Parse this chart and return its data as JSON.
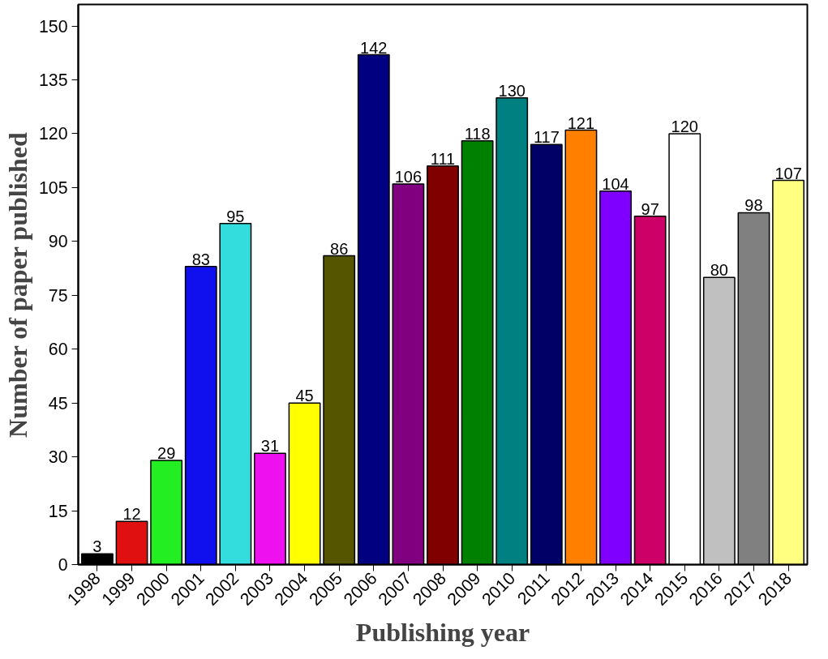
{
  "chart_data": {
    "type": "bar",
    "xlabel": "Publishing year",
    "ylabel": "Number of paper published",
    "categories": [
      "1998",
      "1999",
      "2000",
      "2001",
      "2002",
      "2003",
      "2004",
      "2005",
      "2006",
      "2007",
      "2008",
      "2009",
      "2010",
      "2011",
      "2012",
      "2013",
      "2014",
      "2015",
      "2016",
      "2017",
      "2018"
    ],
    "values": [
      3,
      12,
      29,
      83,
      95,
      31,
      45,
      86,
      142,
      106,
      111,
      118,
      130,
      117,
      121,
      104,
      97,
      120,
      80,
      98,
      107
    ],
    "colors": [
      "#000000",
      "#e01010",
      "#22ee22",
      "#1010ee",
      "#33dddd",
      "#ee10ee",
      "#ffff00",
      "#555500",
      "#000080",
      "#800080",
      "#800000",
      "#008000",
      "#008080",
      "#000066",
      "#ff8000",
      "#8000ff",
      "#cc0066",
      "#ffffff",
      "#c0c0c0",
      "#808080",
      "#ffff80"
    ],
    "ylim": [
      0,
      156
    ],
    "yticks": [
      0,
      15,
      30,
      45,
      60,
      75,
      90,
      105,
      120,
      135,
      150
    ],
    "data_labels": true,
    "grid": false
  }
}
